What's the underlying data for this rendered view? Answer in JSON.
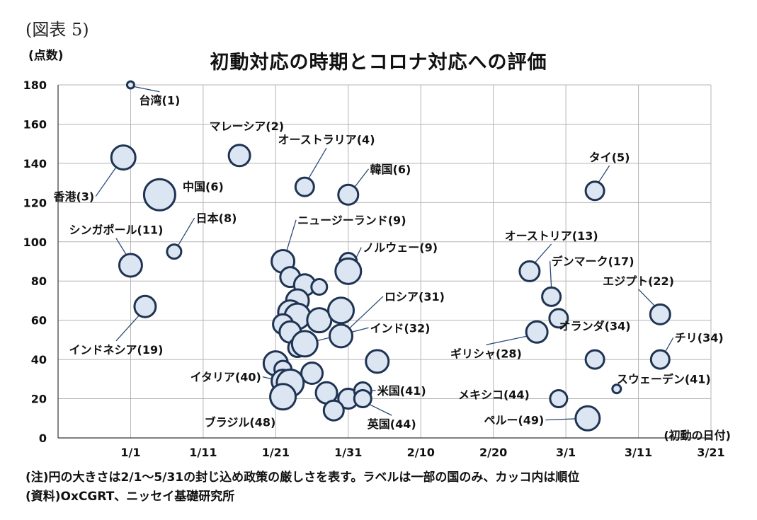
{
  "figure_label": "(図表 5)",
  "chart_data": {
    "type": "scatter",
    "bubble": true,
    "title": "初動対応の時期とコロナ対応への評価",
    "ylabel": "(点数)",
    "xlabel": "(初動の日付)",
    "ylim": [
      0,
      180
    ],
    "yticks": [
      "0",
      "20",
      "40",
      "60",
      "80",
      "100",
      "120",
      "140",
      "160",
      "180"
    ],
    "xlim": [
      "2019-12-22",
      "2020-03-21"
    ],
    "xticks": [
      "1/1",
      "1/11",
      "1/21",
      "1/31",
      "2/10",
      "2/20",
      "3/1",
      "3/11",
      "3/21"
    ],
    "grid": true,
    "size_meaning": "2/1〜5/31の封じ込め政策の厳しさ",
    "points": [
      {
        "x": "2020-01-01",
        "y": 180,
        "r": 5
      },
      {
        "x": "2019-12-31",
        "y": 143,
        "r": 17
      },
      {
        "x": "2020-01-05",
        "y": 124,
        "r": 22
      },
      {
        "x": "2020-01-16",
        "y": 144,
        "r": 15
      },
      {
        "x": "2020-01-25",
        "y": 128,
        "r": 13
      },
      {
        "x": "2020-01-31",
        "y": 124,
        "r": 14
      },
      {
        "x": "2020-03-05",
        "y": 126,
        "r": 13
      },
      {
        "x": "2020-01-07",
        "y": 95,
        "r": 10
      },
      {
        "x": "2020-01-01",
        "y": 88,
        "r": 16
      },
      {
        "x": "2020-01-03",
        "y": 67,
        "r": 15
      },
      {
        "x": "2020-01-22",
        "y": 90,
        "r": 16
      },
      {
        "x": "2020-01-31",
        "y": 90,
        "r": 12
      },
      {
        "x": "2020-01-31",
        "y": 85,
        "r": 18
      },
      {
        "x": "2020-01-23",
        "y": 82,
        "r": 14
      },
      {
        "x": "2020-01-25",
        "y": 78,
        "r": 15
      },
      {
        "x": "2020-01-27",
        "y": 77,
        "r": 11
      },
      {
        "x": "2020-01-24",
        "y": 70,
        "r": 16
      },
      {
        "x": "2020-01-23",
        "y": 64,
        "r": 17
      },
      {
        "x": "2020-01-24",
        "y": 62,
        "r": 18
      },
      {
        "x": "2020-01-27",
        "y": 60,
        "r": 17
      },
      {
        "x": "2020-01-30",
        "y": 65,
        "r": 18
      },
      {
        "x": "2020-01-22",
        "y": 58,
        "r": 14
      },
      {
        "x": "2020-01-23",
        "y": 54,
        "r": 15
      },
      {
        "x": "2020-01-30",
        "y": 52,
        "r": 16
      },
      {
        "x": "2020-01-24",
        "y": 46,
        "r": 13
      },
      {
        "x": "2020-01-25",
        "y": 48,
        "r": 18
      },
      {
        "x": "2020-02-04",
        "y": 39,
        "r": 16
      },
      {
        "x": "2020-01-21",
        "y": 38,
        "r": 17
      },
      {
        "x": "2020-01-22",
        "y": 35,
        "r": 12
      },
      {
        "x": "2020-01-26",
        "y": 33,
        "r": 15
      },
      {
        "x": "2020-01-22",
        "y": 29,
        "r": 16
      },
      {
        "x": "2020-01-23",
        "y": 28,
        "r": 19
      },
      {
        "x": "2020-01-22",
        "y": 21,
        "r": 18
      },
      {
        "x": "2020-01-28",
        "y": 23,
        "r": 15
      },
      {
        "x": "2020-01-31",
        "y": 20,
        "r": 14
      },
      {
        "x": "2020-02-02",
        "y": 24,
        "r": 12
      },
      {
        "x": "2020-02-02",
        "y": 20,
        "r": 12
      },
      {
        "x": "2020-01-29",
        "y": 14,
        "r": 14
      },
      {
        "x": "2020-02-25",
        "y": 85,
        "r": 14
      },
      {
        "x": "2020-02-28",
        "y": 72,
        "r": 13
      },
      {
        "x": "2020-02-29",
        "y": 61,
        "r": 13
      },
      {
        "x": "2020-02-26",
        "y": 54,
        "r": 15
      },
      {
        "x": "2020-03-05",
        "y": 40,
        "r": 13
      },
      {
        "x": "2020-03-14",
        "y": 63,
        "r": 14
      },
      {
        "x": "2020-03-14",
        "y": 40,
        "r": 13
      },
      {
        "x": "2020-03-08",
        "y": 25,
        "r": 6
      },
      {
        "x": "2020-02-29",
        "y": 20,
        "r": 12
      },
      {
        "x": "2020-03-04",
        "y": 10,
        "r": 17
      }
    ],
    "labels": [
      {
        "text": "台湾(1)",
        "point": 0,
        "lx": "2020-01-05",
        "ly": 170,
        "anchor": "middle",
        "line": true
      },
      {
        "text": "香港(3)",
        "point": 1,
        "lx": "2019-12-27",
        "ly": 121,
        "anchor": "end",
        "line": true
      },
      {
        "text": "中国(6)",
        "point": 2,
        "lx": "2020-01-11",
        "ly": 126,
        "anchor": "middle",
        "line": false
      },
      {
        "text": "マレーシア(2)",
        "point": 3,
        "lx": "2020-01-17",
        "ly": 157,
        "anchor": "middle",
        "line": false
      },
      {
        "text": "オーストラリア(4)",
        "point": 4,
        "lx": "2020-01-28",
        "ly": 150,
        "anchor": "middle",
        "line": true
      },
      {
        "text": "韓国(6)",
        "point": 5,
        "lx": "2020-02-03",
        "ly": 135,
        "anchor": "start",
        "line": true
      },
      {
        "text": "タイ(5)",
        "point": 6,
        "lx": "2020-03-07",
        "ly": 141,
        "anchor": "middle",
        "line": true
      },
      {
        "text": "日本(8)",
        "point": 7,
        "lx": "2020-01-10",
        "ly": 110,
        "anchor": "start",
        "line": true
      },
      {
        "text": "シンガポール(11)",
        "point": 8,
        "lx": "2019-12-30",
        "ly": 104,
        "anchor": "middle",
        "line": true
      },
      {
        "text": "インドネシア(19)",
        "point": 9,
        "lx": "2019-12-30",
        "ly": 43,
        "anchor": "middle",
        "line": true
      },
      {
        "text": "ニュージーランド(9)",
        "point": 10,
        "lx": "2020-01-24",
        "ly": 109,
        "anchor": "start",
        "line": true
      },
      {
        "text": "ノルウェー(9)",
        "point": 12,
        "lx": "2020-02-02",
        "ly": 95,
        "anchor": "start",
        "line": true
      },
      {
        "text": "ロシア(31)",
        "point": 23,
        "lx": "2020-02-05",
        "ly": 70,
        "anchor": "start",
        "line": true
      },
      {
        "text": "インド(32)",
        "point": 25,
        "lx": "2020-02-03",
        "ly": 54,
        "anchor": "start",
        "line": true
      },
      {
        "text": "イタリア(40)",
        "point": 31,
        "lx": "2020-01-19",
        "ly": 29,
        "anchor": "end",
        "line": true
      },
      {
        "text": "ブラジル(48)",
        "point": 32,
        "lx": "2020-01-21",
        "ly": 6,
        "anchor": "end",
        "line": false
      },
      {
        "text": "米国(41)",
        "point": 35,
        "lx": "2020-02-04",
        "ly": 22,
        "anchor": "start",
        "line": true
      },
      {
        "text": "英国(44)",
        "point": 36,
        "lx": "2020-02-06",
        "ly": 5,
        "anchor": "middle",
        "line": true
      },
      {
        "text": "オーストリア(13)",
        "point": 38,
        "lx": "2020-02-28",
        "ly": 101,
        "anchor": "middle",
        "line": true
      },
      {
        "text": "デンマーク(17)",
        "point": 39,
        "lx": "2020-02-28",
        "ly": 88,
        "anchor": "start",
        "line": true
      },
      {
        "text": "ギリシャ(28)",
        "point": 41,
        "lx": "2020-02-19",
        "ly": 41,
        "anchor": "middle",
        "line": true
      },
      {
        "text": "オランダ(34)",
        "point": 42,
        "lx": "2020-03-05",
        "ly": 55,
        "anchor": "middle",
        "line": false
      },
      {
        "text": "エジプト(22)",
        "point": 43,
        "lx": "2020-03-11",
        "ly": 78,
        "anchor": "middle",
        "line": true
      },
      {
        "text": "チリ(34)",
        "point": 44,
        "lx": "2020-03-16",
        "ly": 49,
        "anchor": "start",
        "line": true
      },
      {
        "text": "スウェーデン(41)",
        "point": 45,
        "lx": "2020-03-08",
        "ly": 28,
        "anchor": "start",
        "line": false
      },
      {
        "text": "メキシコ(44)",
        "point": 46,
        "lx": "2020-02-25",
        "ly": 20,
        "anchor": "end",
        "line": false
      },
      {
        "text": "ペルー(49)",
        "point": 47,
        "lx": "2020-02-27",
        "ly": 7,
        "anchor": "end",
        "line": true
      }
    ]
  },
  "notes": {
    "note": "(注)円の大きさは2/1〜5/31の封じ込め政策の厳しさを表す。ラベルは一部の国のみ、カッコ内は順位",
    "source": "(資料)OxCGRT、ニッセイ基礎研究所"
  },
  "colors": {
    "bubble_fill": "#dce6f3",
    "bubble_stroke": "#1f3352",
    "grid": "#b5b5b5",
    "leader": "#2c4a78"
  }
}
